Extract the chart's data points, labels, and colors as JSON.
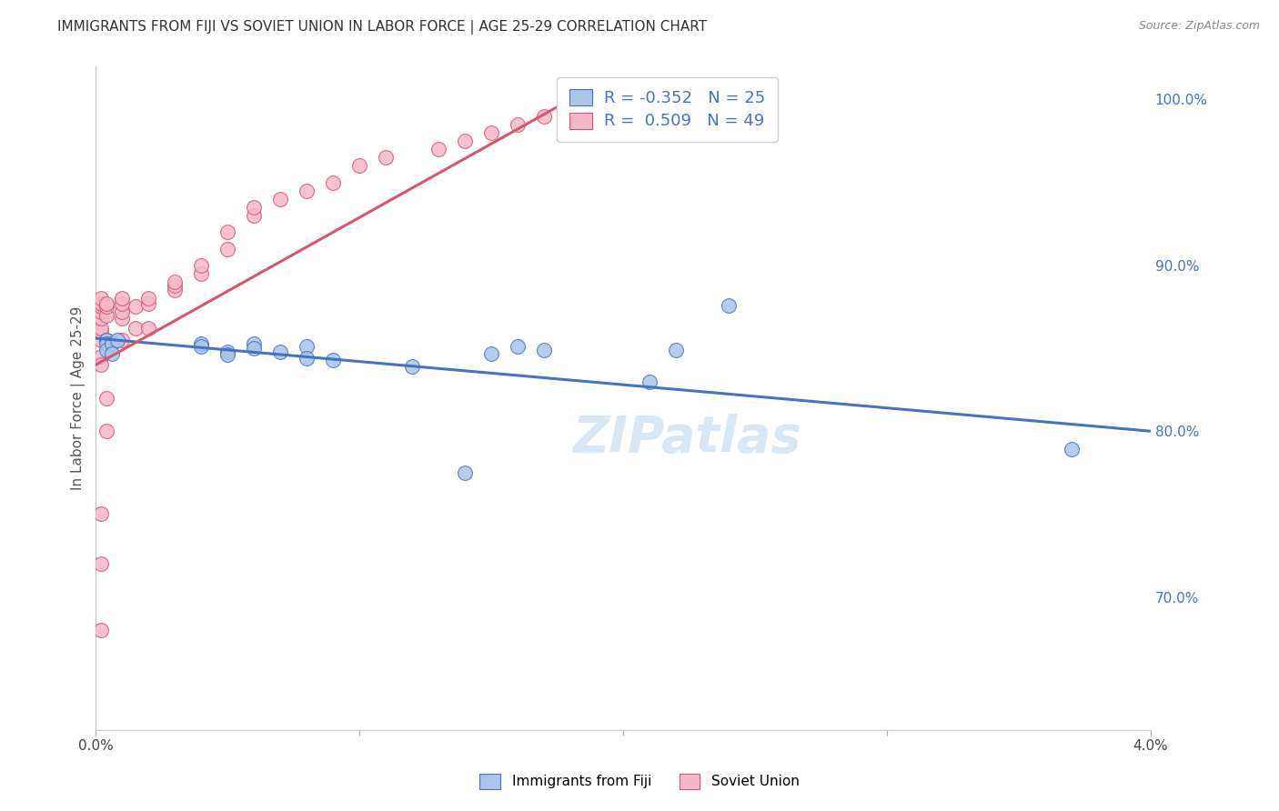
{
  "title": "IMMIGRANTS FROM FIJI VS SOVIET UNION IN LABOR FORCE | AGE 25-29 CORRELATION CHART",
  "source": "Source: ZipAtlas.com",
  "ylabel": "In Labor Force | Age 25-29",
  "x_min": 0.0,
  "x_max": 0.04,
  "y_min": 0.62,
  "y_max": 1.02,
  "x_ticks": [
    0.0,
    0.01,
    0.02,
    0.03,
    0.04
  ],
  "x_tick_labels": [
    "0.0%",
    "",
    "",
    "",
    "4.0%"
  ],
  "y_ticks": [
    0.7,
    0.8,
    0.9,
    1.0
  ],
  "y_tick_labels": [
    "70.0%",
    "80.0%",
    "90.0%",
    "100.0%"
  ],
  "fiji_R": -0.352,
  "fiji_N": 25,
  "soviet_R": 0.509,
  "soviet_N": 49,
  "fiji_color": "#aac4ea",
  "fiji_line_color": "#4472c4",
  "soviet_color": "#f5b8ca",
  "soviet_line_color": "#d9546e",
  "fiji_x": [
    0.0004,
    0.0004,
    0.0004,
    0.0006,
    0.0006,
    0.0008,
    0.004,
    0.004,
    0.005,
    0.005,
    0.006,
    0.006,
    0.007,
    0.008,
    0.008,
    0.009,
    0.012,
    0.014,
    0.015,
    0.016,
    0.017,
    0.021,
    0.022,
    0.024,
    0.037
  ],
  "fiji_y": [
    0.855,
    0.853,
    0.849,
    0.853,
    0.847,
    0.855,
    0.853,
    0.851,
    0.848,
    0.846,
    0.853,
    0.85,
    0.848,
    0.851,
    0.844,
    0.843,
    0.839,
    0.775,
    0.847,
    0.851,
    0.849,
    0.83,
    0.849,
    0.876,
    0.789
  ],
  "soviet_x": [
    0.0002,
    0.0002,
    0.0002,
    0.0002,
    0.0002,
    0.0002,
    0.0002,
    0.0002,
    0.0002,
    0.0004,
    0.0004,
    0.0004,
    0.0004,
    0.001,
    0.001,
    0.001,
    0.001,
    0.001,
    0.0015,
    0.0015,
    0.002,
    0.002,
    0.002,
    0.003,
    0.003,
    0.003,
    0.004,
    0.004,
    0.005,
    0.005,
    0.006,
    0.006,
    0.007,
    0.008,
    0.009,
    0.01,
    0.011,
    0.013,
    0.014,
    0.015,
    0.016,
    0.017,
    0.018,
    0.0002,
    0.0002,
    0.0002,
    0.0002,
    0.0004,
    0.0004
  ],
  "soviet_y": [
    0.855,
    0.86,
    0.862,
    0.868,
    0.872,
    0.875,
    0.877,
    0.88,
    0.845,
    0.87,
    0.875,
    0.877,
    0.855,
    0.868,
    0.872,
    0.877,
    0.88,
    0.855,
    0.875,
    0.862,
    0.877,
    0.88,
    0.862,
    0.885,
    0.888,
    0.89,
    0.895,
    0.9,
    0.91,
    0.92,
    0.93,
    0.935,
    0.94,
    0.945,
    0.95,
    0.96,
    0.965,
    0.97,
    0.975,
    0.98,
    0.985,
    0.99,
    0.995,
    0.84,
    0.75,
    0.72,
    0.68,
    0.82,
    0.8
  ],
  "watermark": "ZIPatlas",
  "background_color": "#ffffff",
  "grid_color": "#d8d8d8"
}
